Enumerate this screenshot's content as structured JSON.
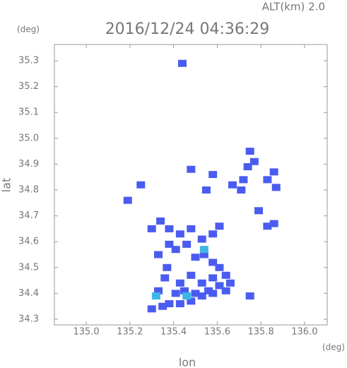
{
  "chart_data": {
    "type": "scatter",
    "title": "2016/12/24 04:36:29",
    "subtitle": "ALT(km) 2.0",
    "y_unit": "(deg)",
    "x_unit": "(deg)",
    "x_label": "lon",
    "y_label": "lat",
    "xlim": [
      134.854,
      136.104
    ],
    "ylim": [
      34.278,
      35.363
    ],
    "xticks": [
      {
        "value": 135,
        "label": "135.0"
      },
      135.2,
      135.4,
      135.6,
      135.8,
      {
        "value": 136,
        "label": "136.0"
      }
    ],
    "yticks": [
      34.3,
      34.4,
      34.5,
      34.6,
      34.7,
      34.8,
      34.9,
      {
        "value": 35,
        "label": "35.0"
      },
      35.1,
      35.2,
      35.3
    ],
    "grid": false,
    "series": [
      {
        "color": "#4a5cf0",
        "x": [
          135.44,
          135.75,
          135.77,
          135.86,
          135.74,
          135.72,
          135.67,
          135.71,
          135.83,
          135.87,
          135.58,
          135.55,
          135.48,
          135.25,
          135.19,
          135.34,
          135.38,
          135.43,
          135.48,
          135.58,
          135.61,
          135.38,
          135.41,
          135.46,
          135.53,
          135.5,
          135.54,
          135.58,
          135.61,
          135.58,
          135.53,
          135.48,
          135.43,
          135.45,
          135.5,
          135.56,
          135.61,
          135.66,
          135.37,
          135.38,
          135.43,
          135.48,
          135.53,
          135.58,
          135.64,
          135.33,
          135.35,
          135.3,
          135.86,
          135.83,
          135.75,
          135.79,
          135.41,
          135.64,
          135.3,
          135.33,
          135.36
        ],
        "values": [
          35.29,
          34.95,
          34.91,
          34.87,
          34.89,
          34.84,
          34.82,
          34.8,
          34.84,
          34.81,
          34.86,
          34.8,
          34.88,
          34.82,
          34.76,
          34.68,
          34.65,
          34.63,
          34.65,
          34.63,
          34.66,
          34.59,
          34.57,
          34.59,
          34.61,
          34.54,
          34.55,
          34.52,
          34.5,
          34.46,
          34.44,
          34.47,
          34.44,
          34.41,
          34.4,
          34.41,
          34.43,
          34.44,
          34.5,
          34.36,
          34.36,
          34.37,
          34.39,
          34.4,
          34.41,
          34.41,
          34.35,
          34.34,
          34.67,
          34.66,
          34.39,
          34.72,
          34.4,
          34.47,
          34.65,
          34.55,
          34.46
        ]
      },
      {
        "color": "#3fb6e8",
        "x": [
          135.54,
          135.46,
          135.32
        ],
        "values": [
          34.57,
          34.39,
          34.39
        ]
      }
    ]
  }
}
